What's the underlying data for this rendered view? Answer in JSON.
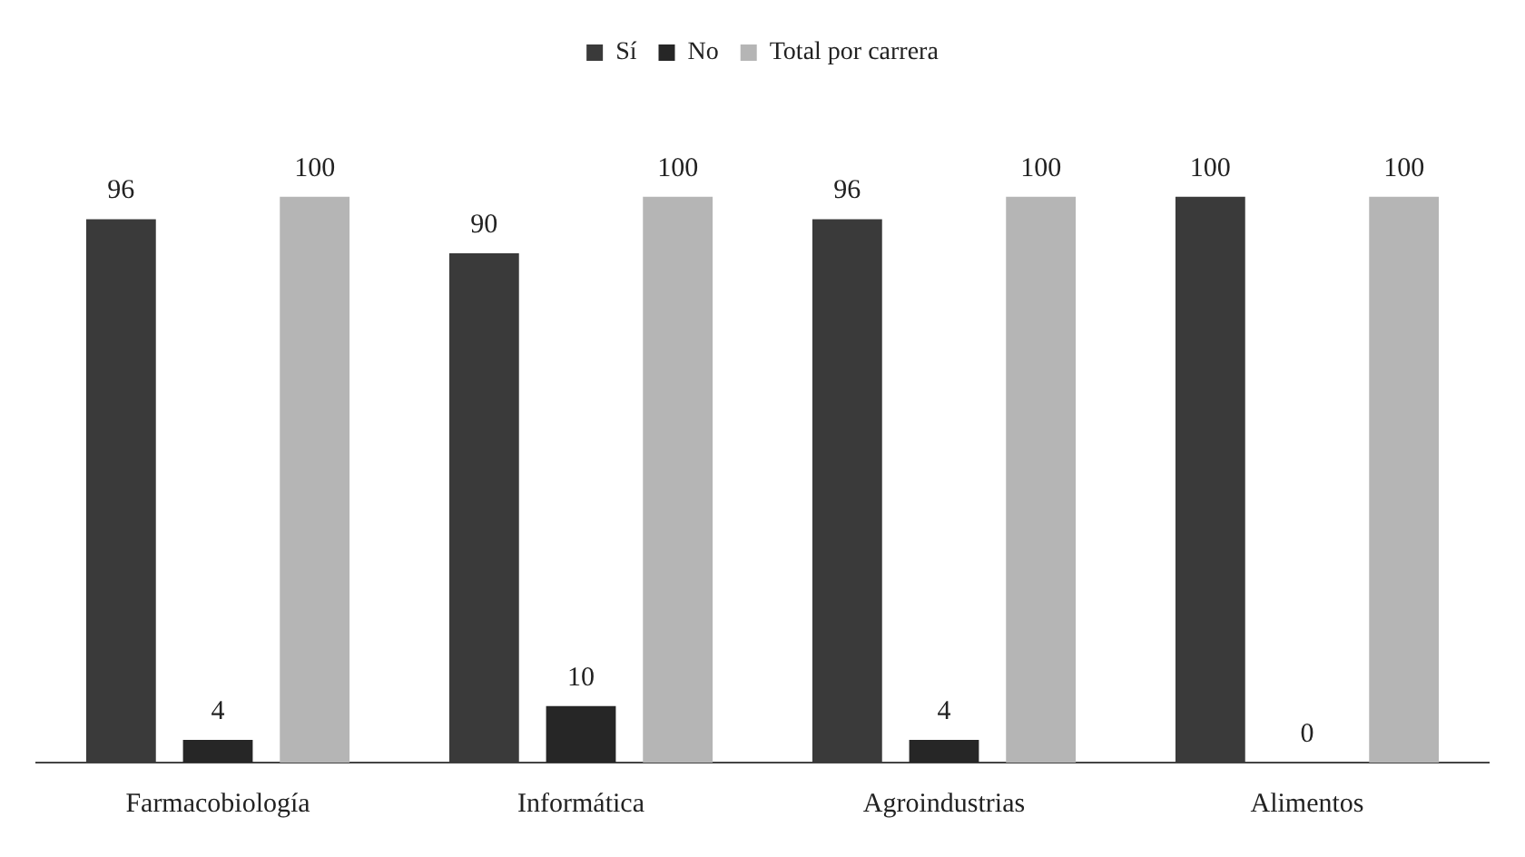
{
  "chart_data": {
    "type": "bar",
    "categories": [
      "Farmacobiología",
      "Informática",
      "Agroindustrias",
      "Alimentos"
    ],
    "series": [
      {
        "name": "Sí",
        "color": "#3a3a3a",
        "values": [
          96,
          90,
          96,
          100
        ]
      },
      {
        "name": "No",
        "color": "#262626",
        "values": [
          4,
          10,
          4,
          0
        ]
      },
      {
        "name": "Total por carrera",
        "color": "#b5b5b5",
        "values": [
          100,
          100,
          100,
          100
        ]
      }
    ],
    "data_labels": true,
    "legend": "top",
    "grid": false
  }
}
